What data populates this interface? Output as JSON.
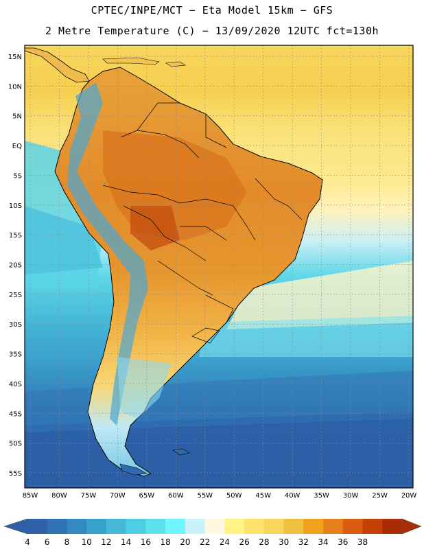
{
  "header": {
    "line1": "CPTEC/INPE/MCT −  Eta Model 15km − GFS",
    "line2": "2 Metre Temperature (C) − 13/09/2020 12UTC fct=130h"
  },
  "map": {
    "lat_labels": [
      "15N",
      "10N",
      "5N",
      "EQ",
      "5S",
      "10S",
      "15S",
      "20S",
      "25S",
      "30S",
      "35S",
      "40S",
      "45S",
      "50S",
      "55S"
    ],
    "lon_labels": [
      "85W",
      "80W",
      "75W",
      "70W",
      "65W",
      "60W",
      "55W",
      "50W",
      "45W",
      "40W",
      "35W",
      "30W",
      "25W",
      "20W"
    ],
    "lat_range": [
      15,
      -55
    ],
    "lon_range": [
      -85,
      -20
    ],
    "land_color": "#e4962f",
    "ocean_warm_color": "#f8d65c",
    "ocean_cold_color": "#2f62a8"
  },
  "colorbar": {
    "labels": [
      "4",
      "6",
      "8",
      "10",
      "12",
      "14",
      "16",
      "18",
      "20",
      "22",
      "24",
      "26",
      "28",
      "30",
      "32",
      "34",
      "36",
      "38"
    ],
    "colors": [
      "#2f5fa7",
      "#2e72b4",
      "#3389c2",
      "#3aa3cd",
      "#46b9d8",
      "#4fcde3",
      "#5fe2ee",
      "#6ff5fb",
      "#c9f2fb",
      "#fff7df",
      "#fff386",
      "#fde36c",
      "#f8d55c",
      "#f0c041",
      "#f0a21a",
      "#e77f1b",
      "#db5e10",
      "#c44208",
      "#a82d06"
    ]
  }
}
